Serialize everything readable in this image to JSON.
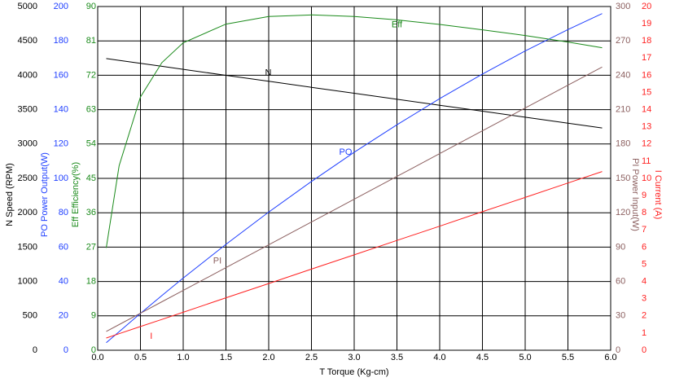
{
  "chart_data": {
    "type": "line",
    "xlabel": "T   Torque (Kg-cm)",
    "xlim": [
      0,
      6
    ],
    "xticks": [
      {
        "value": 0,
        "label": "0.0"
      },
      0.5,
      {
        "value": 1,
        "label": "1.0"
      },
      1.5,
      {
        "value": 2,
        "label": "2.0"
      },
      2.5,
      {
        "value": 3,
        "label": "3.0"
      },
      3.5,
      {
        "value": 4,
        "label": "4.0"
      },
      4.5,
      {
        "value": 5,
        "label": "5.0"
      },
      5.5,
      {
        "value": 6,
        "label": "6.0"
      }
    ],
    "x": [
      0.1,
      0.25,
      0.5,
      0.75,
      1,
      1.5,
      2,
      2.5,
      3,
      3.5,
      4,
      4.5,
      5,
      5.5,
      5.9
    ],
    "ylabel": "N   Speed (RPM)",
    "ylim": [
      0,
      5000
    ],
    "yticks": [
      0,
      500,
      1000,
      1500,
      2000,
      2500,
      3000,
      3500,
      4000,
      4500,
      5000
    ],
    "y2label": "PO   Power Output(W)",
    "y2lim": [
      0,
      200
    ],
    "y2ticks": [
      0,
      20,
      40,
      60,
      80,
      100,
      120,
      140,
      160,
      180,
      200
    ],
    "y3label": "Eff   Efficiency(%)",
    "y3lim": [
      0,
      90
    ],
    "y3ticks": [
      0,
      9,
      18,
      27,
      36,
      45,
      54,
      63,
      72,
      81,
      90
    ],
    "y4label": "PI   Power Input(W)",
    "y4lim": [
      0,
      300
    ],
    "y4ticks": [
      0,
      30,
      60,
      90,
      120,
      150,
      180,
      210,
      240,
      270,
      300
    ],
    "y5label": "I   Current (A)",
    "y5lim": [
      0,
      20
    ],
    "y5ticks": [
      0,
      1,
      2,
      3,
      4,
      5,
      6,
      7,
      8,
      9,
      10,
      11,
      12,
      13,
      14,
      15,
      16,
      17,
      18,
      19,
      20
    ],
    "grid": true,
    "series": [
      {
        "name": "N",
        "axis": "y",
        "color": "#000000",
        "values": [
          4243,
          4217,
          4173,
          4130,
          4086,
          3999,
          3912,
          3825,
          3738,
          3651,
          3564,
          3477,
          3390,
          3303,
          3233
        ]
      },
      {
        "name": "PO",
        "axis": "y2",
        "color": "#1f3fff",
        "values": [
          4.4,
          10.8,
          21.4,
          31.8,
          42.0,
          61.6,
          80.4,
          98.2,
          115.2,
          131.2,
          146.4,
          160.7,
          174.1,
          186.6,
          195.9
        ]
      },
      {
        "name": "Eff",
        "axis": "y3",
        "color": "#1a8a1a",
        "values": [
          26.8,
          48.3,
          66.3,
          75.3,
          80.5,
          85.4,
          87.4,
          87.8,
          87.4,
          86.5,
          85.3,
          83.9,
          82.4,
          80.7,
          79.2
        ]
      },
      {
        "name": "PI",
        "axis": "y4",
        "color": "#8c6060",
        "values": [
          16.4,
          22.4,
          32.3,
          42.3,
          52.2,
          72.1,
          92.0,
          111.9,
          131.8,
          151.7,
          171.6,
          191.5,
          211.4,
          231.3,
          247.2
        ]
      },
      {
        "name": "I",
        "axis": "y5",
        "color": "#ff2020",
        "values": [
          0.71,
          0.96,
          1.38,
          1.79,
          2.21,
          3.05,
          3.88,
          4.72,
          5.55,
          6.39,
          7.22,
          8.06,
          8.89,
          9.73,
          10.4
        ]
      }
    ]
  }
}
